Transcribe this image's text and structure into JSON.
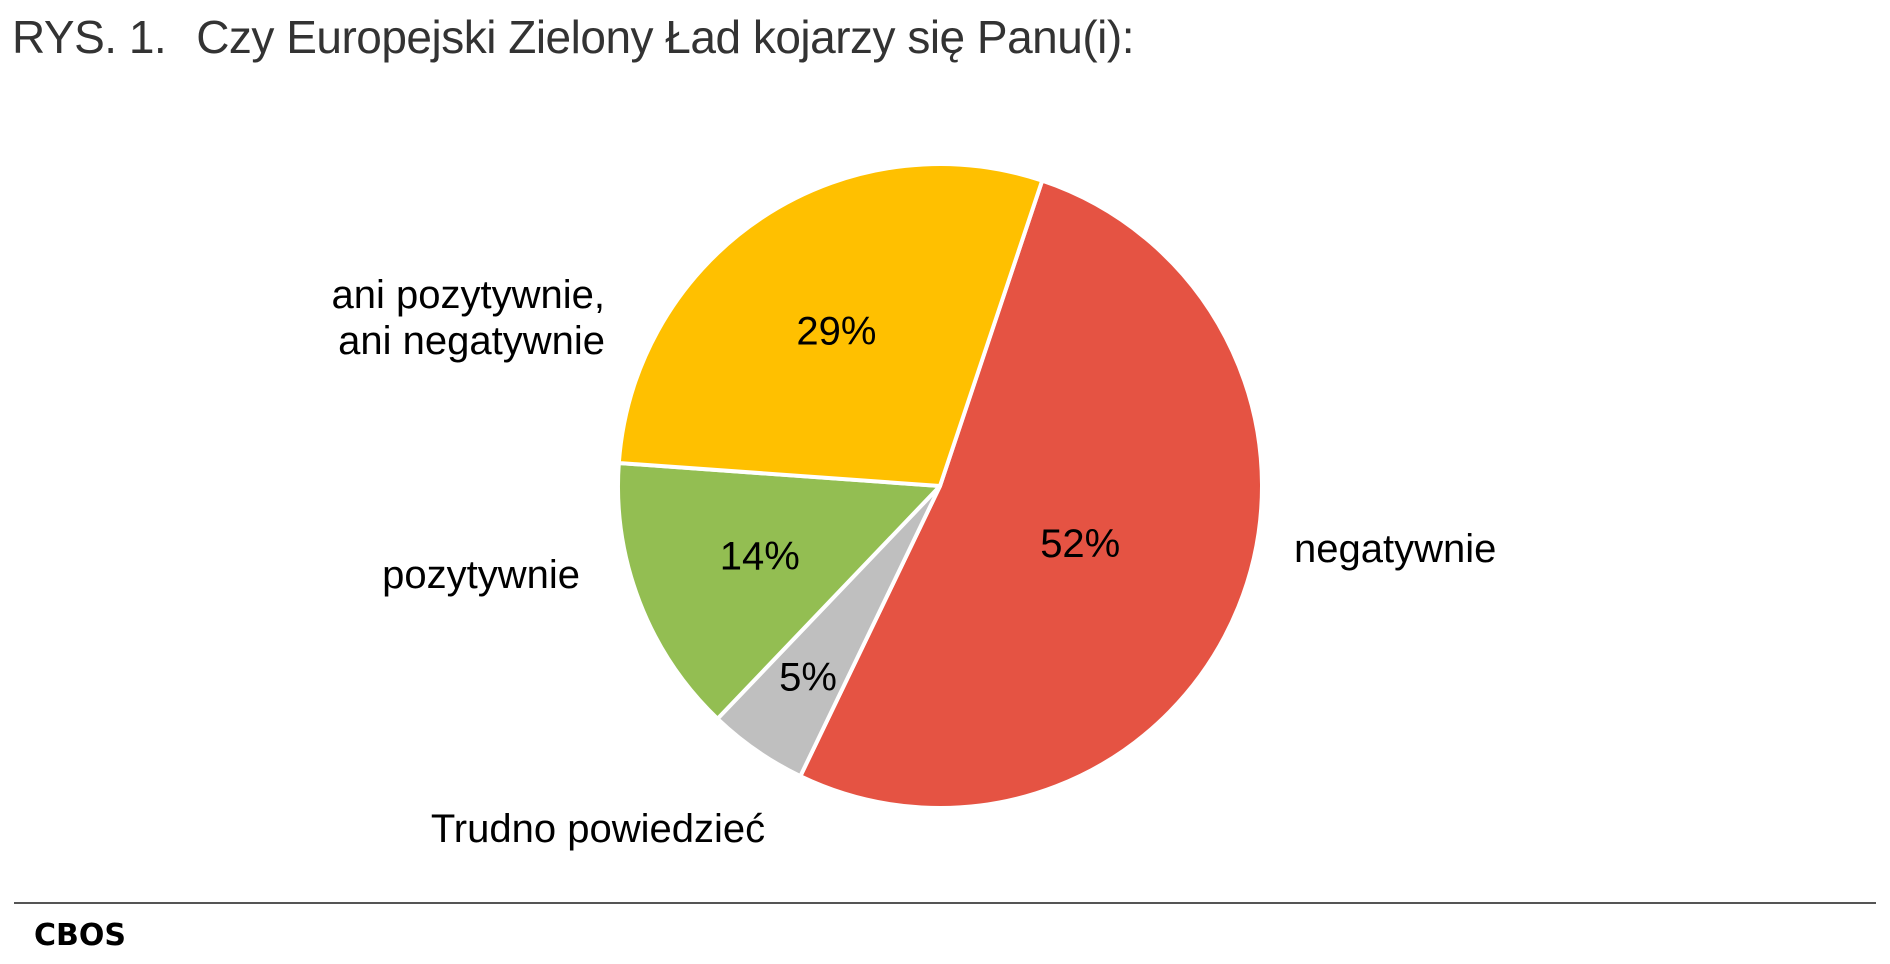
{
  "figure": {
    "number": "RYS. 1.",
    "title": "Czy Europejski Zielony Ład kojarzy się Panu(i):"
  },
  "footer": {
    "source": "CBOS"
  },
  "chart_data": {
    "type": "pie",
    "title": "Czy Europejski Zielony Ład kojarzy się Panu(i):",
    "slices": [
      {
        "label": "negatywnie",
        "value": 52,
        "value_label": "52%",
        "color": "#E55343"
      },
      {
        "label": "Trudno powiedzieć",
        "value": 5,
        "value_label": "5%",
        "color": "#BFBFBF"
      },
      {
        "label": "pozytywnie",
        "value": 14,
        "value_label": "14%",
        "color": "#93BE52"
      },
      {
        "label_lines": [
          "ani pozytywnie,",
          "ani negatywnie"
        ],
        "value": 29,
        "value_label": "29%",
        "color": "#FFC000"
      }
    ],
    "legend": "none",
    "unit": "%"
  }
}
